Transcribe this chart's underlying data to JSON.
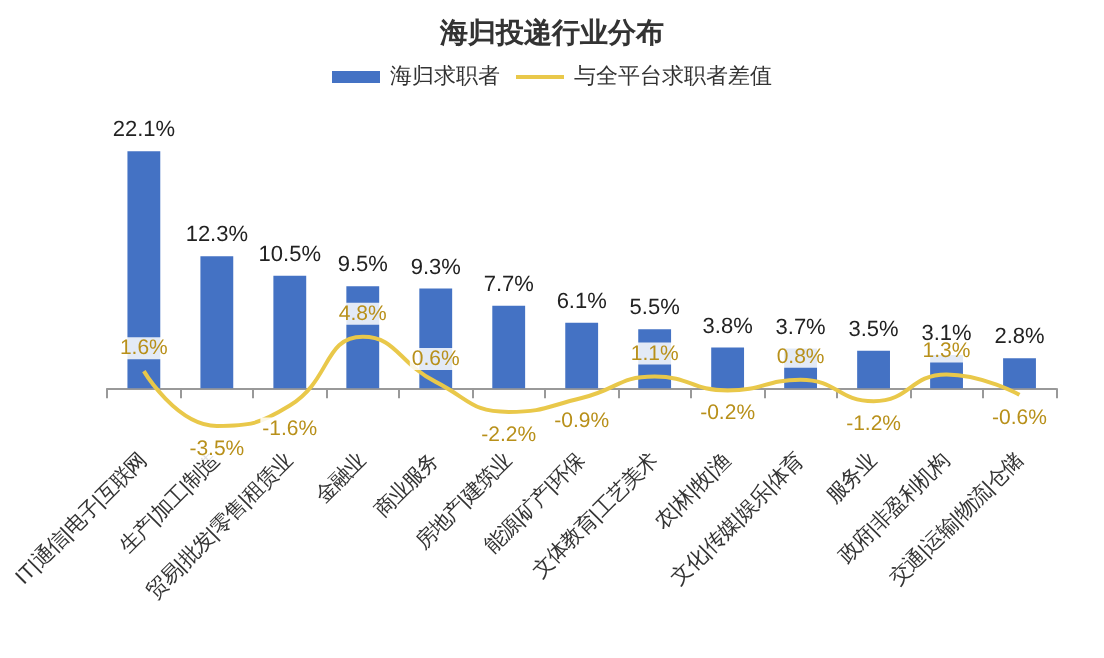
{
  "chart_data": {
    "type": "bar",
    "title": "海归投递行业分布",
    "categories": [
      "IT|通信|电子|互联网",
      "生产|加工|制造",
      "贸易|批发|零售|租赁业",
      "金融业",
      "商业服务",
      "房地产|建筑业",
      "能源|矿产|环保",
      "文体教育|工艺美术",
      "农|林|牧|渔",
      "文化|传媒|娱乐|体育",
      "服务业",
      "政府|非盈利机构",
      "交通|运输|物流|仓储"
    ],
    "series": [
      {
        "name": "海归求职者",
        "color": "#4472c4",
        "values": [
          22.1,
          12.3,
          10.5,
          9.5,
          9.3,
          7.7,
          6.1,
          5.5,
          3.8,
          3.7,
          3.5,
          3.1,
          2.8
        ],
        "value_labels": [
          "22.1%",
          "12.3%",
          "10.5%",
          "9.5%",
          "9.3%",
          "7.7%",
          "6.1%",
          "5.5%",
          "3.8%",
          "3.7%",
          "3.5%",
          "3.1%",
          "2.8%"
        ]
      },
      {
        "name": "与全平台求职者差值",
        "type": "line",
        "color": "#e9c84a",
        "values": [
          1.6,
          -3.5,
          -1.6,
          4.8,
          0.6,
          -2.2,
          -0.9,
          1.1,
          -0.2,
          0.8,
          -1.2,
          1.3,
          -0.6
        ],
        "value_labels": [
          "1.6%",
          "-3.5%",
          "-1.6%",
          "4.8%",
          "0.6%",
          "-2.2%",
          "-0.9%",
          "1.1%",
          "-0.2%",
          "0.8%",
          "-1.2%",
          "1.3%",
          "-0.6%"
        ]
      }
    ],
    "legend": "top",
    "marker": "none",
    "line_style": "solid"
  }
}
